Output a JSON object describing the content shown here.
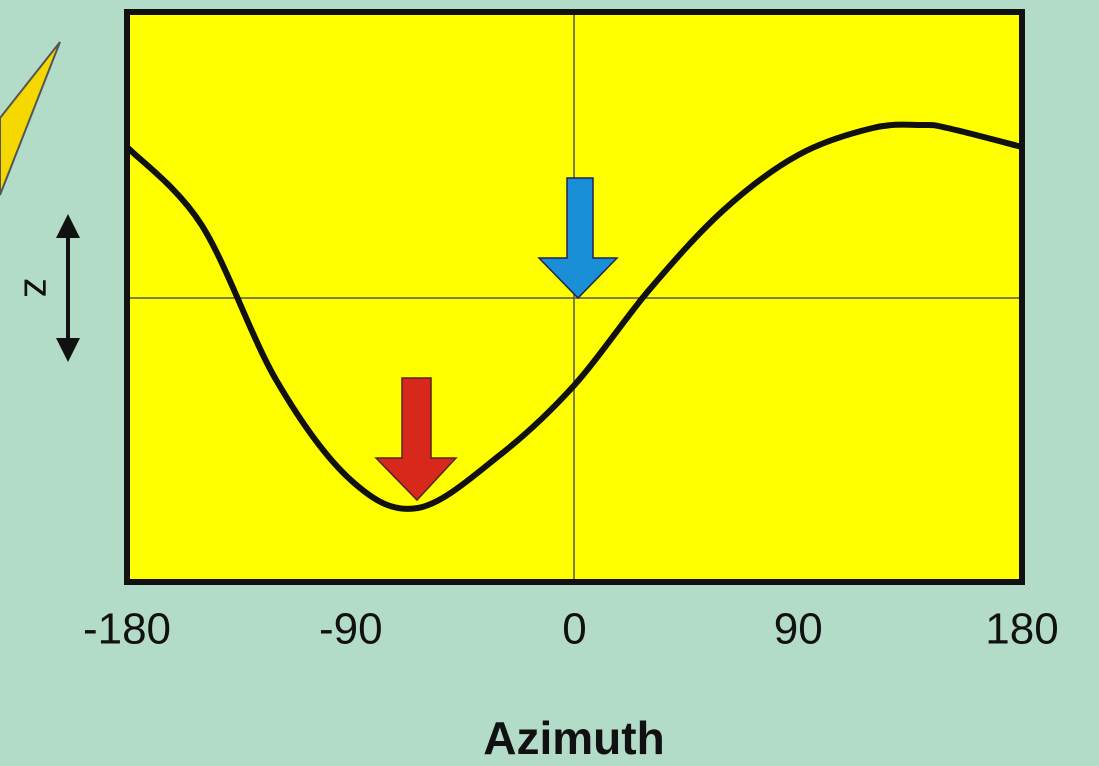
{
  "chart_data": {
    "type": "line",
    "x_label": "Azimuth",
    "y_label": "z",
    "x": [
      -180,
      -150,
      -120,
      -90,
      -63,
      -30,
      0,
      30,
      60,
      90,
      120,
      140,
      150,
      180
    ],
    "series": [
      {
        "color": "#111111",
        "values": [
          1.51,
          0.73,
          -0.82,
          -1.82,
          -2.1,
          -1.57,
          -0.87,
          0.08,
          0.88,
          1.43,
          1.7,
          1.73,
          1.7,
          1.51
        ]
      }
    ],
    "xlim": [
      -180,
      180
    ],
    "xticks": [
      -180,
      -90,
      0,
      90,
      180
    ],
    "ylim": [
      -2.84,
      2.86
    ]
  }
}
